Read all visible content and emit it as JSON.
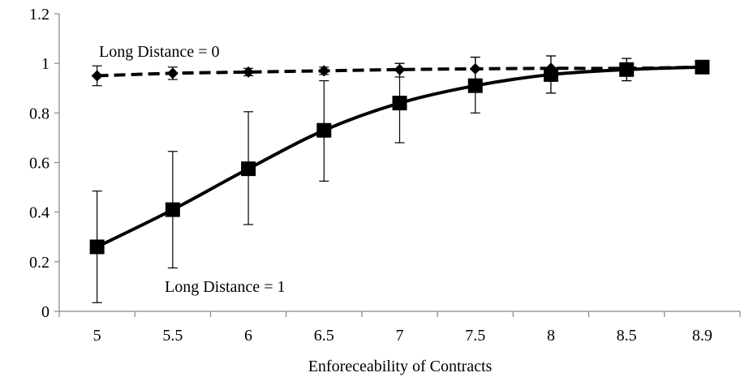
{
  "chart_data": {
    "type": "line",
    "title": "",
    "xlabel": "Enforeceability of Contracts",
    "ylabel": "",
    "categories": [
      "5",
      "5.5",
      "6",
      "6.5",
      "7",
      "7.5",
      "8",
      "8.5",
      "8.9"
    ],
    "ylim": [
      0,
      1.2
    ],
    "yticks": [
      "0",
      "0.2",
      "0.4",
      "0.6",
      "0.8",
      "1",
      "1.2"
    ],
    "grid": false,
    "series": [
      {
        "name": "",
        "values": [
          0.95,
          0.96,
          0.965,
          0.97,
          0.975,
          0.978,
          0.98,
          0.98,
          0.985
        ],
        "err_low": [
          0.91,
          0.935,
          0.95,
          0.955,
          0.945,
          0.93,
          0.88,
          0.93,
          0.975
        ],
        "err_high": [
          0.99,
          0.985,
          0.98,
          0.985,
          1.0,
          1.025,
          1.03,
          1.02,
          0.995
        ],
        "line_style": "dashed",
        "marker": "diamond",
        "color": "#000000"
      },
      {
        "name": "",
        "values": [
          0.26,
          0.41,
          0.575,
          0.73,
          0.84,
          0.91,
          0.955,
          0.975,
          0.985
        ],
        "err_low": [
          0.035,
          0.175,
          0.35,
          0.525,
          0.68,
          0.8,
          0.88,
          0.93,
          0.975
        ],
        "err_high": [
          0.485,
          0.645,
          0.805,
          0.93,
          1.0,
          1.025,
          1.03,
          1.02,
          0.995
        ],
        "line_style": "solid",
        "marker": "square",
        "color": "#000000"
      }
    ],
    "annotations": [
      {
        "text": "Long Distance = 0",
        "series_index": 0
      },
      {
        "text": "Long Distance = 1",
        "series_index": 1
      }
    ]
  }
}
